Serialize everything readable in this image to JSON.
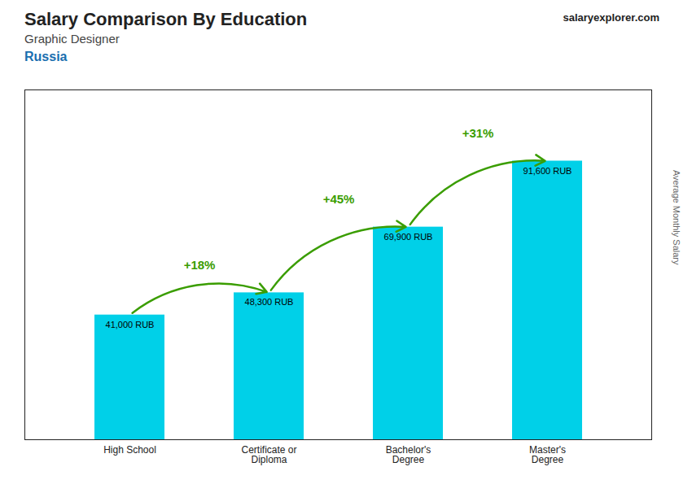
{
  "chart_data": {
    "type": "bar",
    "title": "Salary Comparison By Education",
    "subtitle": "Graphic Designer",
    "ylabel": "Average Monthly Salary",
    "categories": [
      "High School",
      "Certificate or\nDiploma",
      "Bachelor's\nDegree",
      "Master's\nDegree"
    ],
    "values": [
      41000,
      48300,
      69900,
      91600
    ],
    "value_labels": [
      "41,000 RUB",
      "48,300 RUB",
      "69,900 RUB",
      "91,600 RUB"
    ],
    "data_labels": true,
    "color": "#00d0e8",
    "ylim": [
      0,
      115000
    ],
    "tick_labels": "x",
    "grid": false,
    "annotations": [
      {
        "text": "Russia"
      },
      {
        "text": "salaryexplorer.com"
      },
      {
        "text": "+18%",
        "from": "High School",
        "to": "Certificate or\nDiploma"
      },
      {
        "text": "+45%",
        "from": "Certificate or\nDiploma",
        "to": "Bachelor's\nDegree"
      },
      {
        "text": "+31%",
        "from": "Bachelor's\nDegree",
        "to": "Master's\nDegree"
      }
    ]
  }
}
